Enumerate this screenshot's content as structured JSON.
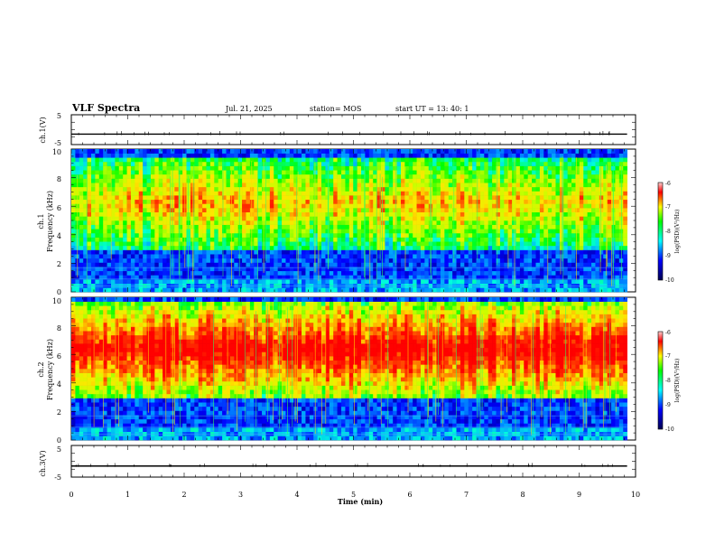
{
  "header": {
    "title": "VLF Spectra",
    "date": "Jul. 21, 2025",
    "station_label": "station= MOS",
    "start_label": "start  UT  =   13: 40: 1"
  },
  "chart_data": [
    {
      "type": "line",
      "name": "ch1-voltage",
      "ylabel": "ch.1(V)",
      "ylim": [
        -5,
        5
      ],
      "yticks": [
        5,
        -5
      ],
      "xlim": [
        0,
        10
      ],
      "baseline_value": -1.5
    },
    {
      "type": "heatmap",
      "name": "ch1-spectrogram",
      "ylabel": "ch.1",
      "ylabel2": "Frequency (kHz)",
      "ylim": [
        0,
        10
      ],
      "yticks": [
        0,
        2,
        4,
        6,
        8,
        10
      ],
      "xlim": [
        0,
        9.85
      ],
      "band_kHz": [
        3,
        9.5
      ],
      "colorbar": {
        "label": "log(PSD)(V²/Hz)",
        "range": [
          -10,
          -6
        ],
        "ticks": [
          "-6",
          "-7",
          "-8",
          "-9",
          "-10"
        ]
      }
    },
    {
      "type": "heatmap",
      "name": "ch2-spectrogram",
      "ylabel": "ch.2",
      "ylabel2": "Frequency (kHz)",
      "ylim": [
        0,
        10
      ],
      "yticks": [
        0,
        2,
        4,
        6,
        8,
        10
      ],
      "xlim": [
        0,
        9.85
      ],
      "band_kHz": [
        3,
        9.7
      ],
      "colorbar": {
        "label": "log(PSD)(V²/Hz)",
        "range": [
          -10,
          -6
        ],
        "ticks": [
          "-6",
          "-7",
          "-8",
          "-9",
          "-10"
        ]
      }
    },
    {
      "type": "line",
      "name": "ch3-voltage",
      "ylabel": "ch.3(V)",
      "ylim": [
        -5,
        5
      ],
      "yticks": [
        5,
        -5
      ],
      "xlim": [
        0,
        10
      ],
      "baseline_value": -1.5,
      "xlabel": "Time (min)",
      "xticks": [
        "0",
        "1",
        "2",
        "3",
        "4",
        "5",
        "6",
        "7",
        "8",
        "9",
        "10"
      ]
    }
  ],
  "colors": {
    "low": "#000060",
    "mid": "#00c8ff",
    "high": "#ff2020"
  }
}
